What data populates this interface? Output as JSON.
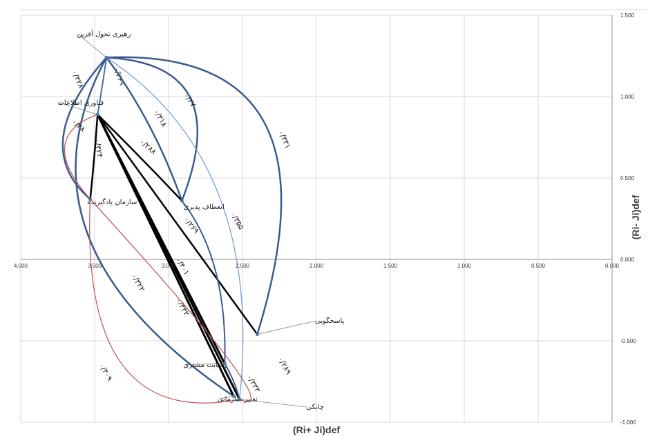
{
  "chart_data": {
    "type": "scatter",
    "xlabel": "(Ri+ Ji)def",
    "ylabel": "(Ri- Ji)def",
    "xlim": [
      0,
      4
    ],
    "ylim": [
      -1,
      1.5
    ],
    "x_reversed": true,
    "grid": true,
    "x_ticks": [
      {
        "value": 4,
        "label": "4.000"
      },
      {
        "value": 3.5,
        "label": "3.500"
      },
      {
        "value": 3,
        "label": "3.000"
      },
      {
        "value": 2.5,
        "label": "2.500"
      },
      {
        "value": 2,
        "label": "2.000"
      },
      {
        "value": 1.5,
        "label": "1.500"
      },
      {
        "value": 1,
        "label": "1.000"
      },
      {
        "value": 0.5,
        "label": "0.500"
      },
      {
        "value": 0,
        "label": "0.000"
      }
    ],
    "y_ticks": [
      {
        "value": 1.5,
        "label": "1.500"
      },
      {
        "value": 1,
        "label": "1.000"
      },
      {
        "value": 0.5,
        "label": "0.500"
      },
      {
        "value": 0,
        "label": "0.000"
      },
      {
        "value": -0.5,
        "label": "-0.500"
      },
      {
        "value": -1,
        "label": "-1.000"
      }
    ],
    "nodes": [
      {
        "id": "leadership",
        "label": "رهبری تحول آفرین",
        "x": 3.42,
        "y": 1.24,
        "anchor": "end",
        "lx": 3.62,
        "ly": 1.37
      },
      {
        "id": "it",
        "label": "فناوری اطلاعات",
        "x": 3.48,
        "y": 0.89,
        "anchor": "end",
        "lx": 3.75,
        "ly": 0.95
      },
      {
        "id": "learning",
        "label": "سازمان یادگیرنده",
        "x": 3.53,
        "y": 0.37,
        "anchor": "end",
        "lx": 3.55,
        "ly": 0.34
      },
      {
        "id": "flexibility",
        "label": "انعطاف پذیری",
        "x": 2.91,
        "y": 0.36,
        "anchor": "end",
        "lx": 2.9,
        "ly": 0.31
      },
      {
        "id": "responsiveness",
        "label": "پاسخگویی",
        "x": 2.4,
        "y": -0.46,
        "anchor": "end",
        "lx": 2.01,
        "ly": -0.39
      },
      {
        "id": "satisfaction",
        "label": "رضایت مشتری",
        "x": 2.62,
        "y": -0.64,
        "anchor": "end",
        "lx": 2.9,
        "ly": -0.66
      },
      {
        "id": "change",
        "label": "تغییر سازمانی",
        "x": 2.56,
        "y": -0.84,
        "anchor": "end",
        "lx": 2.67,
        "ly": -0.87
      },
      {
        "id": "agility",
        "label": "چابکی",
        "x": 2.52,
        "y": -0.86,
        "anchor": "end",
        "lx": 2.07,
        "ly": -0.92
      }
    ],
    "edges": [
      {
        "from": "leadership",
        "to": "it",
        "label": "۰/۲۶۹",
        "color": "#4a6fa5",
        "width": 2,
        "curve": [
          3.45,
          1.05
        ],
        "lx": 3.35,
        "ly": 1.12,
        "rot": 70
      },
      {
        "from": "leadership",
        "to": "learning",
        "label": "۰/۳۲۸",
        "color": "#3b5b8f",
        "width": 2.5,
        "curve": [
          3.95,
          0.7
        ],
        "lx": 3.63,
        "ly": 1.1,
        "rot": 65
      },
      {
        "from": "leadership",
        "to": "flexibility",
        "label": "۰/۳۱۸",
        "color": "#3b5b8f",
        "width": 2.5,
        "curve": [
          3.1,
          0.85
        ],
        "lx": 3.07,
        "ly": 0.86,
        "rot": 60
      },
      {
        "from": "leadership",
        "to": "flexibility",
        "label": "۰/۳۷",
        "color": "#3b5b8f",
        "width": 2.5,
        "curve": [
          2.55,
          1.2
        ],
        "lx": 2.87,
        "ly": 0.97,
        "rot": 55
      },
      {
        "from": "leadership",
        "to": "agility",
        "label": "۰/۳۵۵",
        "color": "#6a9bd1",
        "width": 1.2,
        "curve": [
          2.35,
          0.6
        ],
        "lx": 2.55,
        "ly": 0.23,
        "rot": 60
      },
      {
        "from": "leadership",
        "to": "responsiveness",
        "label": "۰/۳۳۱",
        "color": "#3b5b8f",
        "width": 2.5,
        "curve": [
          1.8,
          1.3
        ],
        "lx": 2.23,
        "ly": 0.73,
        "rot": 65
      },
      {
        "from": "leadership",
        "to": "change",
        "label": "۰/۳۲۲",
        "color": "#3b5b8f",
        "width": 2.5,
        "curve": [
          4.1,
          0.1
        ],
        "lx": 3.22,
        "ly": -0.15,
        "rot": 60
      },
      {
        "from": "it",
        "to": "learning",
        "label": "۰/۳۲۴",
        "color": "#000000",
        "width": 2.5,
        "curve": [
          3.5,
          0.63
        ],
        "lx": 3.49,
        "ly": 0.68,
        "rot": 80
      },
      {
        "from": "it",
        "to": "flexibility",
        "label": "۰/۲۸۸",
        "color": "#000000",
        "width": 2.5,
        "curve": [
          3.19,
          0.63
        ],
        "lx": 3.15,
        "ly": 0.68,
        "rot": 40
      },
      {
        "from": "it",
        "to": "responsiveness",
        "label": "۰/۲۶۹",
        "color": "#000000",
        "width": 2.5,
        "curve": [
          2.94,
          0.21
        ],
        "lx": 2.86,
        "ly": 0.2,
        "rot": 50
      },
      {
        "from": "it",
        "to": "satisfaction",
        "label": "۰/۳۰۱",
        "color": "#000000",
        "width": 3,
        "curve": [
          3.05,
          0.12
        ],
        "lx": 2.92,
        "ly": -0.05,
        "rot": 58
      },
      {
        "from": "it",
        "to": "change",
        "label": "۰/۳۳۲",
        "color": "#000000",
        "width": 3,
        "curve": [
          3.02,
          0.02
        ],
        "lx": 2.92,
        "ly": -0.3,
        "rot": 60
      },
      {
        "from": "it",
        "to": "agility",
        "label": "",
        "color": "#000000",
        "width": 3,
        "curve": [
          3.0,
          0.01
        ],
        "lx": 0,
        "ly": 0,
        "rot": 0
      },
      {
        "from": "flexibility",
        "to": "satisfaction",
        "label": "",
        "color": "#3b5b8f",
        "width": 2,
        "curve": [
          2.6,
          0.0
        ],
        "lx": 0,
        "ly": 0,
        "rot": 0
      },
      {
        "from": "it",
        "to": "learning",
        "label": "۰/۲۸",
        "color": "#c0504d",
        "width": 1.2,
        "curve": [
          3.9,
          0.75
        ],
        "lx": 3.62,
        "ly": 0.81,
        "rot": 40
      },
      {
        "from": "learning",
        "to": "agility",
        "label": "۰/۳۰۹",
        "color": "#c0504d",
        "width": 1.2,
        "curve": [
          3.6,
          -1.05
        ],
        "lx": 3.44,
        "ly": -0.7,
        "rot": 60
      },
      {
        "from": "learning",
        "to": "agility",
        "label": "۰/۲۸۹",
        "color": "#c0504d",
        "width": 1.2,
        "curve": [
          2.15,
          -1.0
        ],
        "lx": 2.23,
        "ly": -0.66,
        "rot": 60
      },
      {
        "from": "satisfaction",
        "to": "agility",
        "label": "۰/۳۳۳",
        "color": "#3b5b8f",
        "width": 2,
        "curve": [
          2.55,
          -0.75
        ],
        "lx": 2.44,
        "ly": -0.77,
        "rot": 60
      }
    ]
  }
}
